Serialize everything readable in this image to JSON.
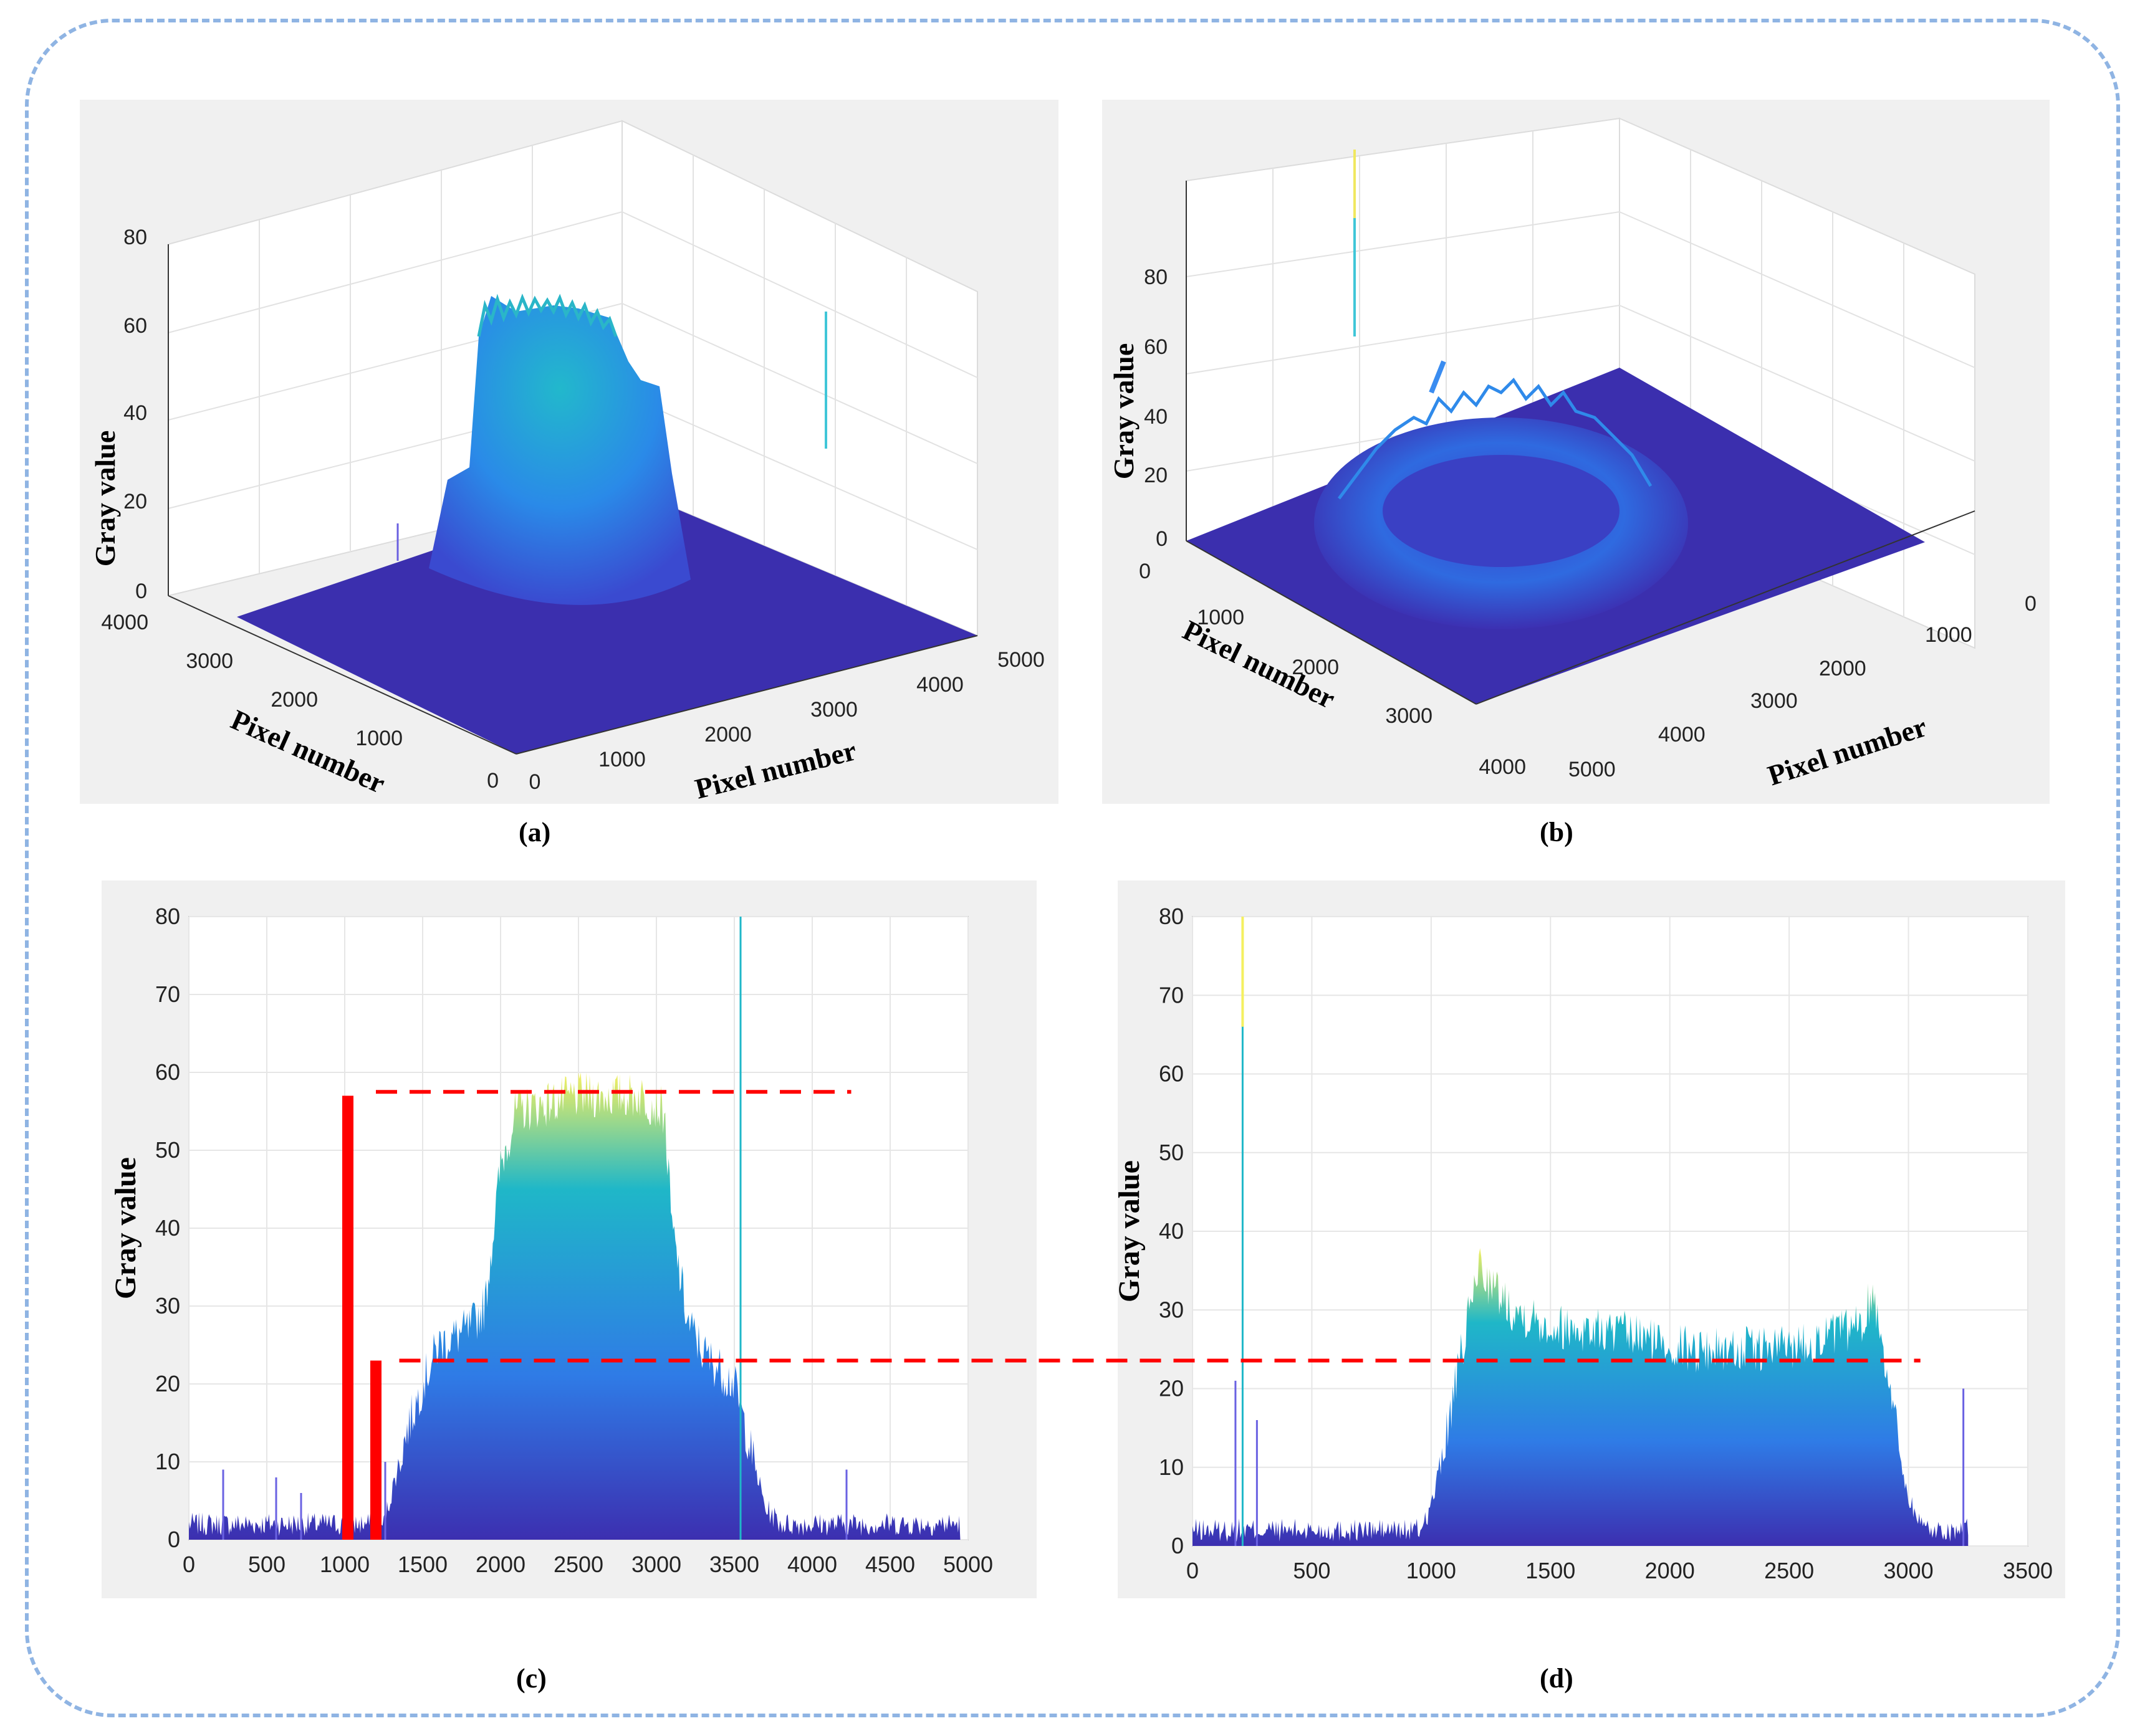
{
  "captions": {
    "a": "(a)",
    "b": "(b)",
    "c": "(c)",
    "d": "(d)"
  },
  "panel_a": {
    "zlabel": "Gray value",
    "xlabel": "Pixel number",
    "ylabel": "Pixel number",
    "zticks": [
      "0",
      "20",
      "40",
      "60",
      "80"
    ],
    "xticks": [
      "0",
      "1000",
      "2000",
      "3000",
      "4000",
      "5000"
    ],
    "yticks": [
      "0",
      "1000",
      "2000",
      "3000",
      "4000"
    ]
  },
  "panel_b": {
    "zlabel": "Gray value",
    "xlabel": "Pixel number",
    "ylabel": "Pixel number",
    "zticks": [
      "0",
      "20",
      "40",
      "60",
      "80"
    ],
    "xticks": [
      "0",
      "1000",
      "2000",
      "3000",
      "4000",
      "5000"
    ],
    "yticks": [
      "0",
      "1000",
      "2000",
      "3000",
      "4000"
    ]
  },
  "colors": {
    "base": "#3c2fb0",
    "mid": "#2f7be6",
    "high": "#1fb7c8",
    "peak": "#f5f060",
    "panel_bg": "#f0f0f0",
    "frame": "#8fb4e3",
    "annotation": "#ff0000"
  },
  "chart_data": [
    {
      "id": "c",
      "type": "area",
      "xlabel": "Pixel number",
      "ylabel": "Gray value",
      "xlim": [
        0,
        5000
      ],
      "ylim": [
        0,
        80
      ],
      "xticks": [
        0,
        500,
        1000,
        1500,
        2000,
        2500,
        3000,
        3500,
        4000,
        4500,
        5000
      ],
      "yticks": [
        0,
        10,
        20,
        30,
        40,
        50,
        60,
        70,
        80
      ],
      "profile_x": [
        0,
        1250,
        1300,
        1400,
        1500,
        1600,
        1800,
        1900,
        2000,
        2100,
        2500,
        2900,
        3050,
        3100,
        3200,
        3300,
        3500,
        3600,
        3700,
        3800,
        4950
      ],
      "profile_y": [
        2,
        2,
        6,
        14,
        20,
        25,
        27,
        30,
        48,
        55,
        57,
        57,
        55,
        40,
        28,
        24,
        20,
        12,
        4,
        2,
        2
      ],
      "noise_max": 3,
      "spikes": [
        {
          "x": 220,
          "y": 9
        },
        {
          "x": 560,
          "y": 8
        },
        {
          "x": 720,
          "y": 6
        },
        {
          "x": 1260,
          "y": 10
        },
        {
          "x": 3540,
          "y": 80
        },
        {
          "x": 4220,
          "y": 9
        }
      ],
      "annotations": {
        "bar1": {
          "x": 1020,
          "value": 57
        },
        "bar2": {
          "x": 1200,
          "value": 23
        },
        "line_high": {
          "x_from": 1200,
          "x_to": 4250,
          "value": 57.5
        },
        "line_low": {
          "x_from": 1350,
          "x_to": 5000,
          "value": 23
        }
      }
    },
    {
      "id": "d",
      "type": "area",
      "xlabel": "Pixel number",
      "ylabel": "Gray value",
      "xlim": [
        0,
        3500
      ],
      "ylim": [
        0,
        80
      ],
      "xticks": [
        0,
        500,
        1000,
        1500,
        2000,
        2500,
        3000,
        3500
      ],
      "yticks": [
        0,
        10,
        20,
        30,
        40,
        50,
        60,
        70,
        80
      ],
      "profile_x": [
        0,
        950,
        1000,
        1050,
        1100,
        1150,
        1200,
        1250,
        1350,
        1500,
        1800,
        2100,
        2400,
        2600,
        2700,
        2800,
        2850,
        2880,
        2950,
        3000,
        3050,
        3100,
        3250
      ],
      "profile_y": [
        2,
        2,
        5,
        12,
        20,
        28,
        36,
        33,
        30,
        28,
        27,
        25,
        25,
        26,
        27,
        28,
        32,
        28,
        15,
        6,
        3,
        2,
        2
      ],
      "noise_max": 3,
      "spikes": [
        {
          "x": 180,
          "y": 21
        },
        {
          "x": 210,
          "y": 80
        },
        {
          "x": 270,
          "y": 16
        },
        {
          "x": 3230,
          "y": 20
        }
      ],
      "annotations": {
        "line_low": {
          "x_from": -450,
          "x_to": 3050,
          "value": 23.5
        }
      }
    }
  ]
}
